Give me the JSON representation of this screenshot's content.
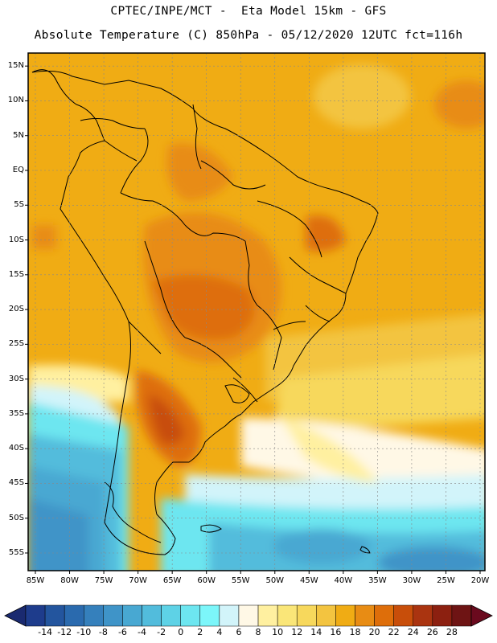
{
  "header": {
    "line1": "CPTEC/INPE/MCT -  Eta Model 15km - GFS",
    "line2": "Absolute Temperature (C) 850hPa - 05/12/2020 12UTC fct=116h"
  },
  "axes": {
    "lat_labels": [
      "15N",
      "10N",
      "5N",
      "EQ",
      "5S",
      "10S",
      "15S",
      "20S",
      "25S",
      "30S",
      "35S",
      "40S",
      "45S",
      "50S",
      "55S"
    ],
    "lat_values": [
      15,
      10,
      5,
      0,
      -5,
      -10,
      -15,
      -20,
      -25,
      -30,
      -35,
      -40,
      -45,
      -50,
      -55
    ],
    "lon_labels": [
      "85W",
      "80W",
      "75W",
      "70W",
      "65W",
      "60W",
      "55W",
      "50W",
      "45W",
      "40W",
      "35W",
      "30W",
      "25W",
      "20W"
    ],
    "lon_values": [
      -85,
      -80,
      -75,
      -70,
      -65,
      -60,
      -55,
      -50,
      -45,
      -40,
      -35,
      -30,
      -25,
      -20
    ]
  },
  "colorbar": {
    "labels": [
      "-14",
      "-12",
      "-10",
      "-8",
      "-6",
      "-4",
      "-2",
      "0",
      "2",
      "4",
      "6",
      "8",
      "10",
      "12",
      "14",
      "16",
      "18",
      "20",
      "22",
      "24",
      "26",
      "28"
    ],
    "colors": [
      "#1e3c8c",
      "#23559e",
      "#2a6aae",
      "#3580bc",
      "#3f94c8",
      "#48a8d2",
      "#52bcdc",
      "#5ed2e6",
      "#6de6f0",
      "#7cf6fa",
      "#d2f4fa",
      "#fff8e6",
      "#fff0a0",
      "#fae678",
      "#f7d85c",
      "#f3c440",
      "#f0ac14",
      "#e88c14",
      "#de6e0a",
      "#c84e0a",
      "#aa3410",
      "#8c2010",
      "#6e1414"
    ],
    "under_color": "#1a2a70",
    "over_color": "#6a0a1e"
  }
}
